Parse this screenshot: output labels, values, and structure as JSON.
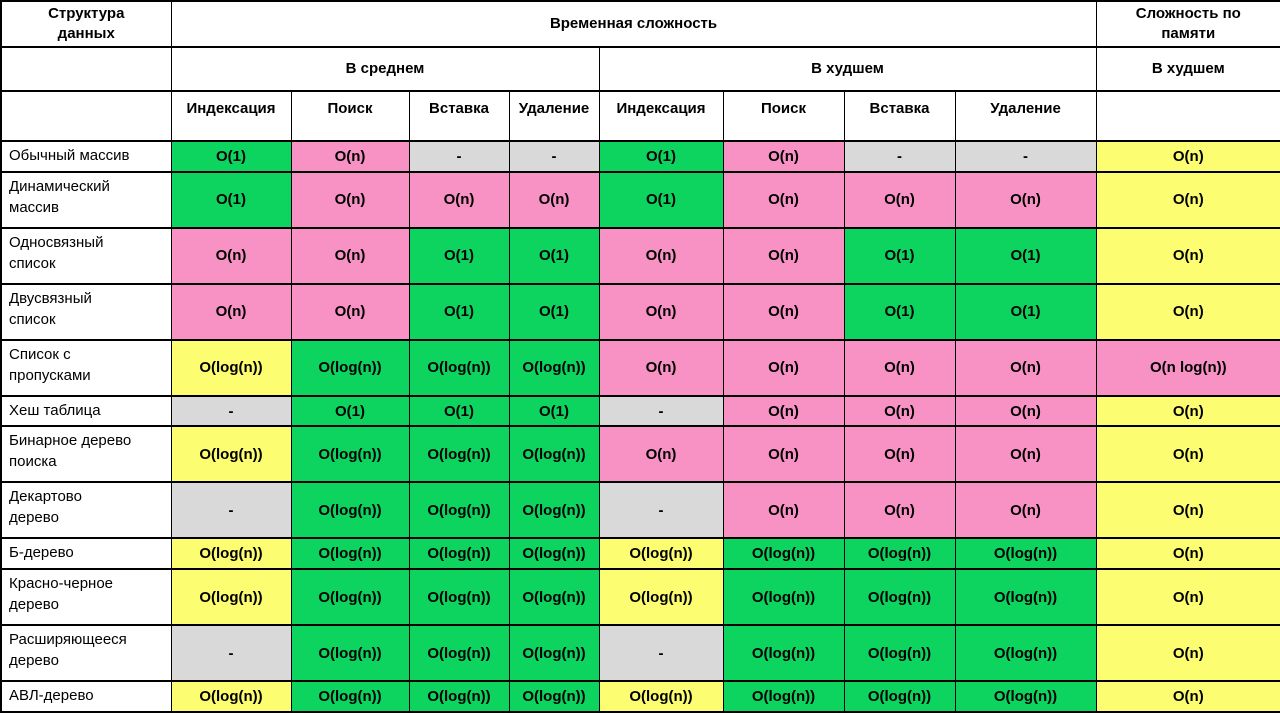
{
  "chart_data": {
    "type": "table",
    "header": {
      "structure": "Структура\nданных",
      "time": "Временная сложность",
      "memory": "Сложность по\nпамяти",
      "avg": "В среднем",
      "worst": "В худшем",
      "memory_worst": "В худшем",
      "ops": [
        "Индексация",
        "Поиск",
        "Вставка",
        "Удаление",
        "Индексация",
        "Поиск",
        "Вставка",
        "Удаление"
      ]
    },
    "colors": {
      "green": "#0dd35f",
      "pink": "#f892c5",
      "yellow": "#fdfd72",
      "gray": "#d9d9d9"
    },
    "rows": [
      {
        "name": "Обычный массив",
        "cells": [
          {
            "v": "O(1)",
            "c": "green"
          },
          {
            "v": "O(n)",
            "c": "pink"
          },
          {
            "v": "-",
            "c": "gray"
          },
          {
            "v": "-",
            "c": "gray"
          },
          {
            "v": "O(1)",
            "c": "green"
          },
          {
            "v": "O(n)",
            "c": "pink"
          },
          {
            "v": "-",
            "c": "gray"
          },
          {
            "v": "-",
            "c": "gray"
          },
          {
            "v": "O(n)",
            "c": "yellow"
          }
        ]
      },
      {
        "name": "Динамический\nмассив",
        "cells": [
          {
            "v": "O(1)",
            "c": "green"
          },
          {
            "v": "O(n)",
            "c": "pink"
          },
          {
            "v": "O(n)",
            "c": "pink"
          },
          {
            "v": "O(n)",
            "c": "pink"
          },
          {
            "v": "O(1)",
            "c": "green"
          },
          {
            "v": "O(n)",
            "c": "pink"
          },
          {
            "v": "O(n)",
            "c": "pink"
          },
          {
            "v": "O(n)",
            "c": "pink"
          },
          {
            "v": "O(n)",
            "c": "yellow"
          }
        ]
      },
      {
        "name": "Односвязный\nсписок",
        "cells": [
          {
            "v": "O(n)",
            "c": "pink"
          },
          {
            "v": "O(n)",
            "c": "pink"
          },
          {
            "v": "O(1)",
            "c": "green"
          },
          {
            "v": "O(1)",
            "c": "green"
          },
          {
            "v": "O(n)",
            "c": "pink"
          },
          {
            "v": "O(n)",
            "c": "pink"
          },
          {
            "v": "O(1)",
            "c": "green"
          },
          {
            "v": "O(1)",
            "c": "green"
          },
          {
            "v": "O(n)",
            "c": "yellow"
          }
        ]
      },
      {
        "name": "Двусвязный\nсписок",
        "cells": [
          {
            "v": "O(n)",
            "c": "pink"
          },
          {
            "v": "O(n)",
            "c": "pink"
          },
          {
            "v": "O(1)",
            "c": "green"
          },
          {
            "v": "O(1)",
            "c": "green"
          },
          {
            "v": "O(n)",
            "c": "pink"
          },
          {
            "v": "O(n)",
            "c": "pink"
          },
          {
            "v": "O(1)",
            "c": "green"
          },
          {
            "v": "O(1)",
            "c": "green"
          },
          {
            "v": "O(n)",
            "c": "yellow"
          }
        ]
      },
      {
        "name": "Список с\nпропусками",
        "cells": [
          {
            "v": "O(log(n))",
            "c": "yellow"
          },
          {
            "v": "O(log(n))",
            "c": "green"
          },
          {
            "v": "O(log(n))",
            "c": "green"
          },
          {
            "v": "O(log(n))",
            "c": "green"
          },
          {
            "v": "O(n)",
            "c": "pink"
          },
          {
            "v": "O(n)",
            "c": "pink"
          },
          {
            "v": "O(n)",
            "c": "pink"
          },
          {
            "v": "O(n)",
            "c": "pink"
          },
          {
            "v": "O(n log(n))",
            "c": "pink"
          }
        ]
      },
      {
        "name": "Хеш таблица",
        "cells": [
          {
            "v": "-",
            "c": "gray"
          },
          {
            "v": "O(1)",
            "c": "green"
          },
          {
            "v": "O(1)",
            "c": "green"
          },
          {
            "v": "O(1)",
            "c": "green"
          },
          {
            "v": "-",
            "c": "gray"
          },
          {
            "v": "O(n)",
            "c": "pink"
          },
          {
            "v": "O(n)",
            "c": "pink"
          },
          {
            "v": "O(n)",
            "c": "pink"
          },
          {
            "v": "O(n)",
            "c": "yellow"
          }
        ]
      },
      {
        "name": "Бинарное дерево\nпоиска",
        "cells": [
          {
            "v": "O(log(n))",
            "c": "yellow"
          },
          {
            "v": "O(log(n))",
            "c": "green"
          },
          {
            "v": "O(log(n))",
            "c": "green"
          },
          {
            "v": "O(log(n))",
            "c": "green"
          },
          {
            "v": "O(n)",
            "c": "pink"
          },
          {
            "v": "O(n)",
            "c": "pink"
          },
          {
            "v": "O(n)",
            "c": "pink"
          },
          {
            "v": "O(n)",
            "c": "pink"
          },
          {
            "v": "O(n)",
            "c": "yellow"
          }
        ]
      },
      {
        "name": "Декартово\nдерево",
        "cells": [
          {
            "v": "-",
            "c": "gray"
          },
          {
            "v": "O(log(n))",
            "c": "green"
          },
          {
            "v": "O(log(n))",
            "c": "green"
          },
          {
            "v": "O(log(n))",
            "c": "green"
          },
          {
            "v": "-",
            "c": "gray"
          },
          {
            "v": "O(n)",
            "c": "pink"
          },
          {
            "v": "O(n)",
            "c": "pink"
          },
          {
            "v": "O(n)",
            "c": "pink"
          },
          {
            "v": "O(n)",
            "c": "yellow"
          }
        ]
      },
      {
        "name": "Б-дерево",
        "cells": [
          {
            "v": "O(log(n))",
            "c": "yellow"
          },
          {
            "v": "O(log(n))",
            "c": "green"
          },
          {
            "v": "O(log(n))",
            "c": "green"
          },
          {
            "v": "O(log(n))",
            "c": "green"
          },
          {
            "v": "O(log(n))",
            "c": "yellow"
          },
          {
            "v": "O(log(n))",
            "c": "green"
          },
          {
            "v": "O(log(n))",
            "c": "green"
          },
          {
            "v": "O(log(n))",
            "c": "green"
          },
          {
            "v": "O(n)",
            "c": "yellow"
          }
        ]
      },
      {
        "name": "Красно-черное\nдерево",
        "cells": [
          {
            "v": "O(log(n))",
            "c": "yellow"
          },
          {
            "v": "O(log(n))",
            "c": "green"
          },
          {
            "v": "O(log(n))",
            "c": "green"
          },
          {
            "v": "O(log(n))",
            "c": "green"
          },
          {
            "v": "O(log(n))",
            "c": "yellow"
          },
          {
            "v": "O(log(n))",
            "c": "green"
          },
          {
            "v": "O(log(n))",
            "c": "green"
          },
          {
            "v": "O(log(n))",
            "c": "green"
          },
          {
            "v": "O(n)",
            "c": "yellow"
          }
        ]
      },
      {
        "name": "Расширяющееся\nдерево",
        "cells": [
          {
            "v": "-",
            "c": "gray"
          },
          {
            "v": "O(log(n))",
            "c": "green"
          },
          {
            "v": "O(log(n))",
            "c": "green"
          },
          {
            "v": "O(log(n))",
            "c": "green"
          },
          {
            "v": "-",
            "c": "gray"
          },
          {
            "v": "O(log(n))",
            "c": "green"
          },
          {
            "v": "O(log(n))",
            "c": "green"
          },
          {
            "v": "O(log(n))",
            "c": "green"
          },
          {
            "v": "O(n)",
            "c": "yellow"
          }
        ]
      },
      {
        "name": "АВЛ-дерево",
        "cells": [
          {
            "v": "O(log(n))",
            "c": "yellow"
          },
          {
            "v": "O(log(n))",
            "c": "green"
          },
          {
            "v": "O(log(n))",
            "c": "green"
          },
          {
            "v": "O(log(n))",
            "c": "green"
          },
          {
            "v": "O(log(n))",
            "c": "yellow"
          },
          {
            "v": "O(log(n))",
            "c": "green"
          },
          {
            "v": "O(log(n))",
            "c": "green"
          },
          {
            "v": "O(log(n))",
            "c": "green"
          },
          {
            "v": "O(n)",
            "c": "yellow"
          }
        ]
      }
    ]
  }
}
